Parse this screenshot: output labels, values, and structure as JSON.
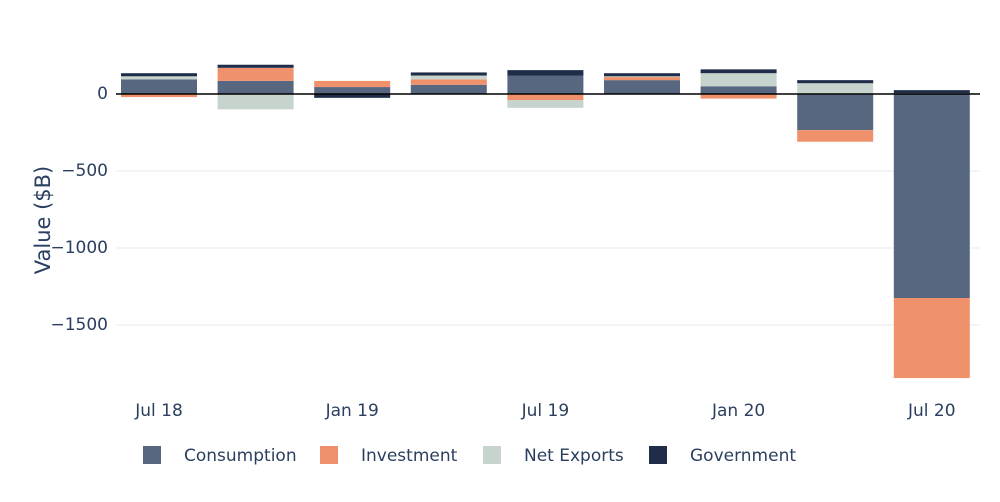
{
  "chart_data": {
    "type": "bar",
    "barmode": "relative",
    "ylabel": "Value ($B)",
    "categories": [
      "Jul 18",
      null,
      "Jan 19",
      null,
      "Jul 19",
      null,
      "Jan 20",
      null,
      "Jul 20"
    ],
    "series": [
      {
        "name": "Consumption",
        "color": "#56677f",
        "values": [
          95,
          85,
          45,
          60,
          120,
          90,
          50,
          -235,
          -1325
        ]
      },
      {
        "name": "Investment",
        "color": "#ef926b",
        "values": [
          -20,
          85,
          40,
          35,
          -40,
          20,
          -30,
          -75,
          -520
        ]
      },
      {
        "name": "Net Exports",
        "color": "#c7d3cd",
        "values": [
          20,
          -100,
          0,
          25,
          -50,
          5,
          85,
          70,
          5
        ]
      },
      {
        "name": "Government",
        "color": "#1f2d48",
        "values": [
          20,
          20,
          -25,
          20,
          35,
          20,
          25,
          20,
          20
        ]
      }
    ],
    "ylim": [
      -1890,
      250
    ],
    "yticks": [
      0,
      {
        "value": -500,
        "label": "−500"
      },
      {
        "value": -1000,
        "label": "−1000"
      },
      {
        "value": -1500,
        "label": "−1500"
      }
    ],
    "grid": true
  }
}
